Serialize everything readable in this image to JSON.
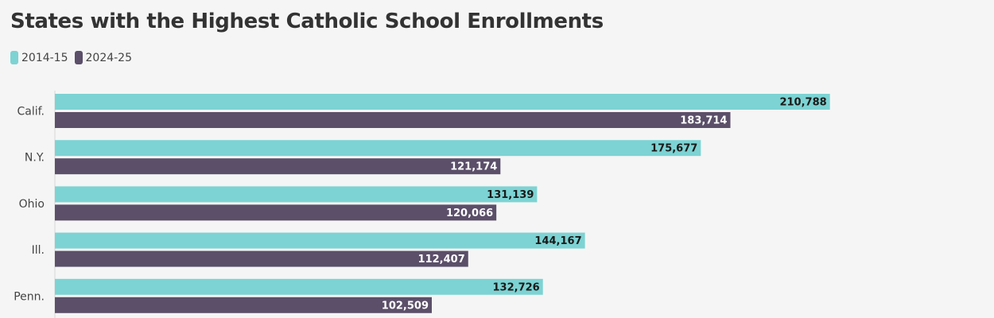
{
  "chart_data": {
    "type": "bar",
    "orientation": "horizontal",
    "title": "States with the Highest Catholic School Enrollments",
    "categories": [
      "Calif.",
      "N.Y.",
      "Ohio",
      "Ill.",
      "Penn."
    ],
    "series": [
      {
        "name": "2014-15",
        "color": "#7dd3d3",
        "values": [
          210788,
          175677,
          131139,
          144167,
          132726
        ],
        "labels": [
          "210,788",
          "175,677",
          "131,139",
          "144,167",
          "132,726"
        ]
      },
      {
        "name": "2024-25",
        "color": "#5b4f69",
        "values": [
          183714,
          121174,
          120066,
          112407,
          102509
        ],
        "labels": [
          "183,714",
          "121,174",
          "120,066",
          "112,407",
          "102,509"
        ]
      }
    ],
    "xlim": [
      0,
      250000
    ],
    "legend": "top-left",
    "grid": false
  }
}
